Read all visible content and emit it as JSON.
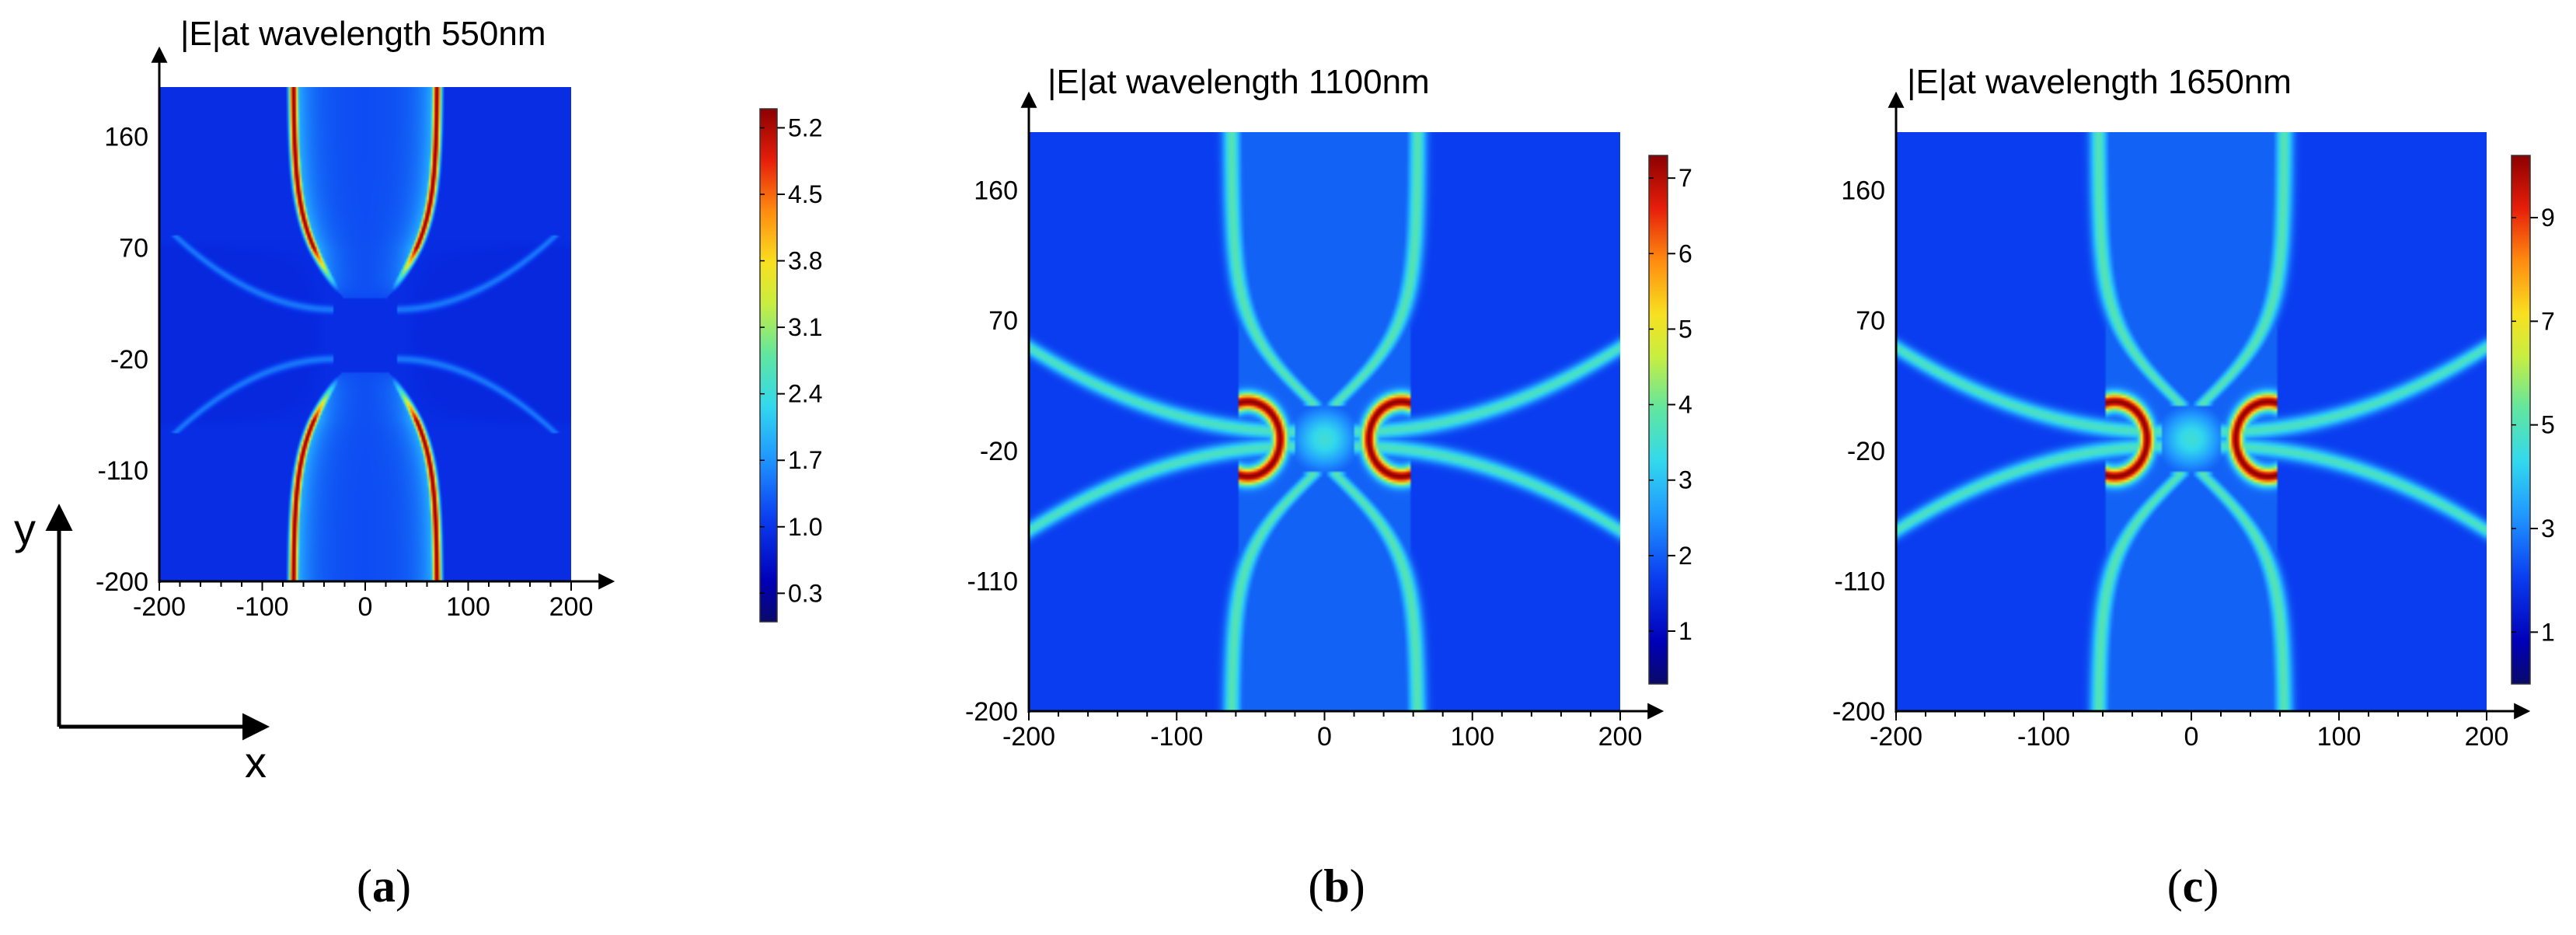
{
  "chart_data": [
    {
      "type": "heatmap",
      "id": "a",
      "title": "|E|at wavelength 550nm",
      "caption_letter": "a",
      "mode": "vertical",
      "xlim": [
        -200,
        200
      ],
      "ylim": [
        -200,
        200
      ],
      "x_ticks": [
        -200,
        -100,
        0,
        100,
        200
      ],
      "x_tick_labels": [
        "-200",
        "-100",
        "0",
        "100",
        "200"
      ],
      "y_ticks": [
        -200,
        -110,
        -20,
        70,
        160
      ],
      "y_tick_labels": [
        "-200",
        "-110",
        "-20",
        "70",
        "160"
      ],
      "colorbar": {
        "min": 0.0,
        "max": 5.4,
        "ticks": [
          0.3,
          1.0,
          1.7,
          2.4,
          3.1,
          3.8,
          4.5,
          5.2
        ],
        "tick_labels": [
          "0.3",
          "1.0",
          "1.7",
          "2.4",
          "3.1",
          "3.8",
          "4.5",
          "5.2"
        ]
      }
    },
    {
      "type": "heatmap",
      "id": "b",
      "title": "|E|at wavelength 1100nm",
      "caption_letter": "b",
      "mode": "bowtie",
      "xlim": [
        -200,
        200
      ],
      "ylim": [
        -200,
        200
      ],
      "x_ticks": [
        -200,
        -100,
        0,
        100,
        200
      ],
      "x_tick_labels": [
        "-200",
        "-100",
        "0",
        "100",
        "200"
      ],
      "y_ticks": [
        -200,
        -110,
        -20,
        70,
        160
      ],
      "y_tick_labels": [
        "-200",
        "-110",
        "-20",
        "70",
        "160"
      ],
      "colorbar": {
        "min": 0.3,
        "max": 7.3,
        "ticks": [
          1,
          2,
          3,
          4,
          5,
          6,
          7
        ],
        "tick_labels": [
          "1",
          "2",
          "3",
          "4",
          "5",
          "6",
          "7"
        ]
      }
    },
    {
      "type": "heatmap",
      "id": "c",
      "title": "|E|at wavelength 1650nm",
      "caption_letter": "c",
      "mode": "bowtie",
      "xlim": [
        -200,
        200
      ],
      "ylim": [
        -200,
        200
      ],
      "x_ticks": [
        -200,
        -100,
        0,
        100,
        200
      ],
      "x_tick_labels": [
        "-200",
        "-100",
        "0",
        "100",
        "200"
      ],
      "y_ticks": [
        -200,
        -110,
        -20,
        70,
        160
      ],
      "y_tick_labels": [
        "-200",
        "-110",
        "-20",
        "70",
        "160"
      ],
      "colorbar": {
        "min": 0.0,
        "max": 10.2,
        "ticks": [
          1,
          3,
          5,
          7,
          9
        ],
        "tick_labels": [
          "1",
          "3",
          "5",
          "7",
          "9"
        ]
      }
    }
  ],
  "axes_indicator": {
    "x_label": "x",
    "y_label": "y"
  },
  "colors": {
    "min": "#0a0a60",
    "low": "#1c3cf0",
    "mid": "#32d2ee",
    "high": "#f0e820",
    "max": "#8b0000"
  }
}
